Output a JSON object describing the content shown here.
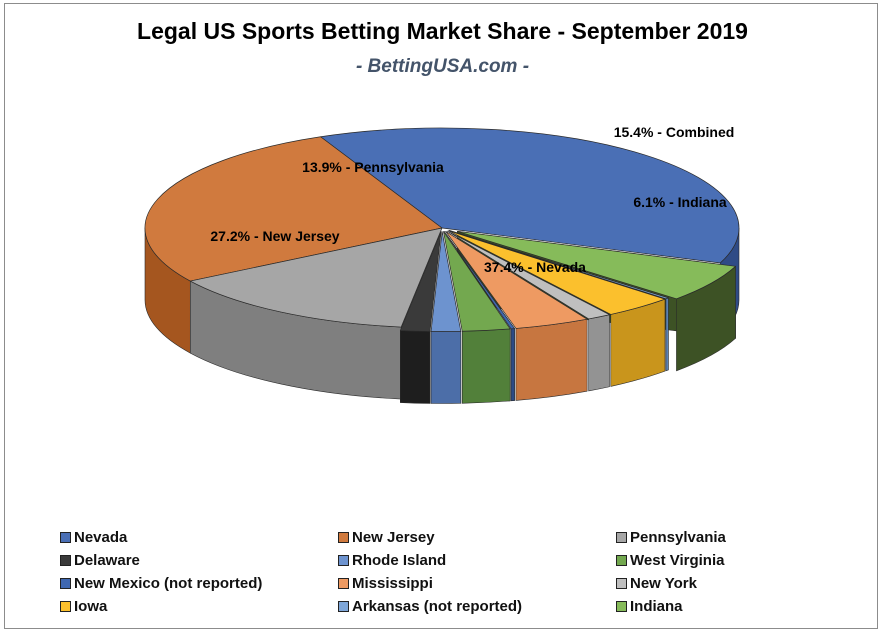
{
  "chart_data": {
    "type": "pie",
    "title": "Legal US Sports Betting Market Share - September 2019",
    "subtitle": "- BettingUSA.com -",
    "slices": [
      {
        "name": "Nevada",
        "value": 37.4,
        "color": "#4a6fb5",
        "side": "#2f4b86",
        "label": "37.4% - Nevada"
      },
      {
        "name": "New Jersey",
        "value": 27.2,
        "color": "#d07a3e",
        "side": "#a5561f",
        "label": "27.2% - New Jersey"
      },
      {
        "name": "Pennsylvania",
        "value": 13.9,
        "color": "#a6a6a6",
        "side": "#7f7f7f",
        "label": "13.9% - Pennsylvania"
      },
      {
        "name": "Delaware",
        "value": 1.6,
        "color": "#3a3a3a",
        "side": "#1e1e1e",
        "label": ""
      },
      {
        "name": "Rhode Island",
        "value": 1.6,
        "color": "#6d93cf",
        "side": "#4c6ea8",
        "label": ""
      },
      {
        "name": "West Virginia",
        "value": 2.6,
        "color": "#73a84f",
        "side": "#52803a",
        "label": ""
      },
      {
        "name": "New Mexico (not reported)",
        "value": 0.2,
        "color": "#3f67b0",
        "side": "#2b4a85",
        "label": ""
      },
      {
        "name": "Mississippi",
        "value": 4.1,
        "color": "#ee9a62",
        "side": "#c77640",
        "label": ""
      },
      {
        "name": "New York",
        "value": 1.3,
        "color": "#bfbfbf",
        "side": "#939393",
        "label": ""
      },
      {
        "name": "Iowa",
        "value": 3.8,
        "color": "#fbc02d",
        "side": "#c9951c",
        "label": ""
      },
      {
        "name": "Arkansas (not reported)",
        "value": 0.2,
        "color": "#7ea6d8",
        "side": "#5a82b4",
        "label": ""
      },
      {
        "name": "Indiana",
        "value": 6.1,
        "color": "#86bb5a",
        "side": "#3d5225",
        "label": "6.1% - Indiana"
      }
    ],
    "annotations": [
      {
        "text": "15.4% - Combined"
      }
    ],
    "legend_position": "bottom"
  }
}
